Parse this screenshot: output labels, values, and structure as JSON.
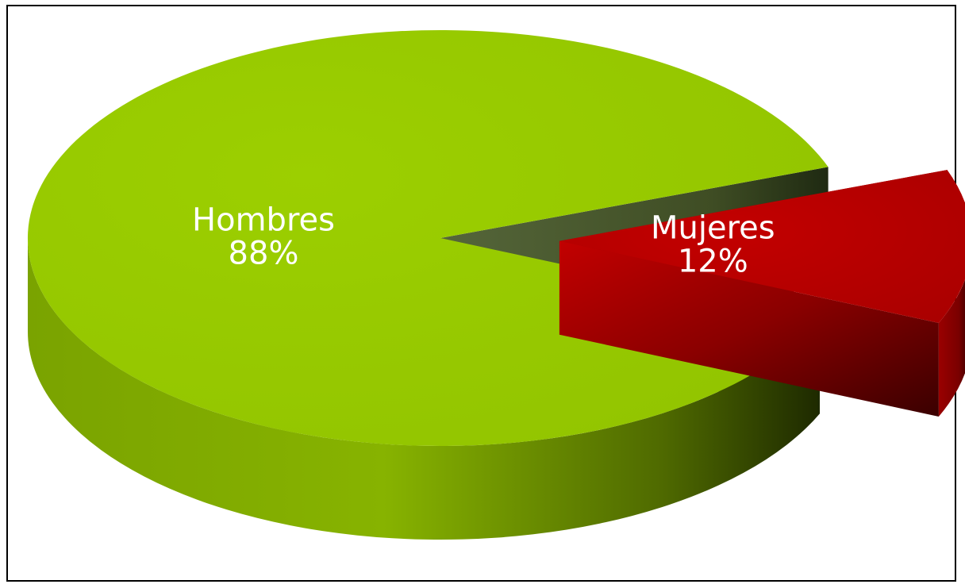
{
  "chart_data": {
    "type": "pie",
    "style": "3d-exploded",
    "legend": "none",
    "slices": [
      {
        "name": "Hombres",
        "label": "88%",
        "value": 88,
        "color": "#96c800",
        "side_color": "#5e7d00",
        "cut_color": "#4b5a2c"
      },
      {
        "name": "Mujeres",
        "label": "12%",
        "value": 12,
        "color": "#b50000",
        "side_color": "#6e0000",
        "cut_color": "#8a0000"
      }
    ]
  }
}
